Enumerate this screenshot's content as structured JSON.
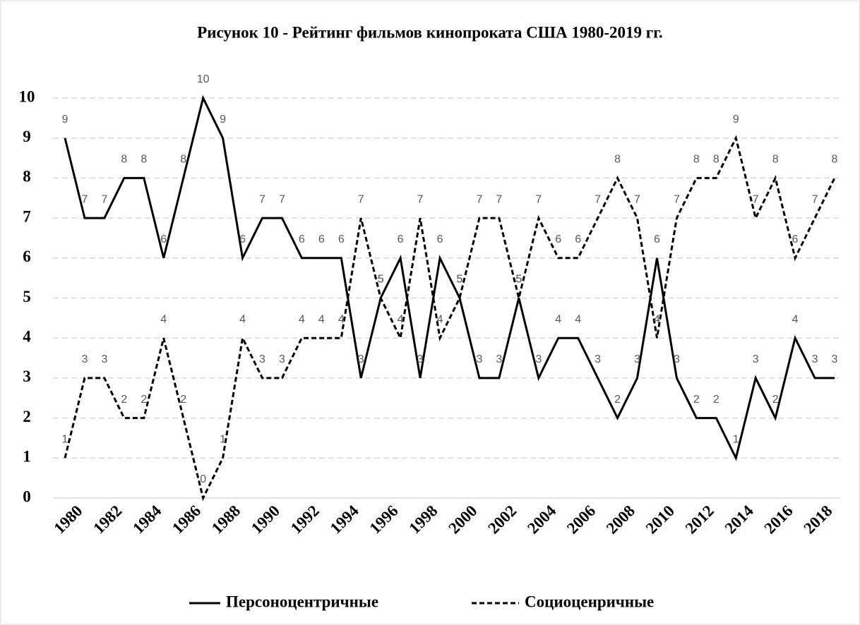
{
  "chart_data": {
    "type": "line",
    "title": "Рисунок 10 - Рейтинг фильмов кинопроката  США 1980-2019 гг.",
    "categories": [
      1980,
      null,
      1982,
      null,
      1984,
      null,
      1986,
      null,
      1988,
      null,
      1990,
      null,
      1992,
      null,
      1994,
      null,
      1996,
      null,
      1998,
      null,
      2000,
      null,
      2002,
      null,
      2004,
      null,
      2006,
      null,
      2008,
      null,
      2010,
      null,
      2012,
      null,
      2014,
      null,
      2016,
      null,
      2018,
      null
    ],
    "series": [
      {
        "name": "Персоноцентричные",
        "color": "#000000",
        "linestyle": "solid",
        "values": [
          9,
          7,
          7,
          8,
          8,
          6,
          8,
          10,
          9,
          6,
          7,
          7,
          6,
          6,
          6,
          3,
          5,
          6,
          3,
          6,
          5,
          3,
          3,
          5,
          3,
          4,
          4,
          3,
          2,
          3,
          6,
          3,
          2,
          2,
          1,
          3,
          2,
          4,
          3,
          3
        ]
      },
      {
        "name": "Социоценричные",
        "color": "#000000",
        "linestyle": "dashed",
        "values": [
          1,
          3,
          3,
          2,
          2,
          4,
          2,
          0,
          1,
          4,
          3,
          3,
          4,
          4,
          4,
          7,
          5,
          4,
          7,
          4,
          5,
          7,
          7,
          5,
          7,
          6,
          6,
          7,
          8,
          7,
          4,
          7,
          8,
          8,
          9,
          7,
          8,
          6,
          7,
          8
        ]
      }
    ],
    "ylim": [
      0,
      10
    ],
    "yticks": [
      0,
      1,
      2,
      3,
      4,
      5,
      6,
      7,
      8,
      9,
      10
    ],
    "grid": true,
    "legend": "bottom"
  }
}
